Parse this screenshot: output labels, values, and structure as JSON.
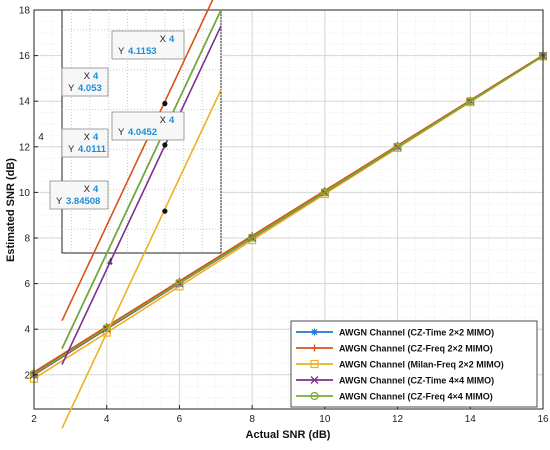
{
  "chart_data": {
    "type": "line",
    "xlabel": "Actual SNR (dB)",
    "ylabel": "Estimated SNR (dB)",
    "xlim": [
      2,
      16
    ],
    "ylim": [
      0.5,
      18
    ],
    "x_ticks": [
      "2",
      "4",
      "6",
      "8",
      "10",
      "12",
      "14",
      "16"
    ],
    "y_ticks": [
      "2",
      "4",
      "6",
      "8",
      "10",
      "12",
      "14",
      "16",
      "18"
    ],
    "grid": true,
    "legend_position": "bottom-right",
    "x": [
      2,
      4,
      6,
      8,
      10,
      12,
      14,
      16
    ],
    "series": [
      {
        "name": "AWGN Channel (CZ-Time 2×2 MIMO)",
        "color": "#1f77d0",
        "marker": "asterisk",
        "values": [
          2.05,
          4.05,
          6.04,
          8.04,
          10.03,
          12.02,
          14.01,
          16.0
        ]
      },
      {
        "name": "AWGN Channel (CZ-Freq 2×2 MIMO)",
        "color": "#d95319",
        "marker": "plus",
        "values": [
          2.12,
          4.12,
          6.11,
          8.1,
          10.08,
          12.06,
          14.04,
          16.02
        ]
      },
      {
        "name": "AWGN Channel (Milan-Freq 2×2 MIMO)",
        "color": "#edb120",
        "marker": "square",
        "values": [
          1.83,
          3.85,
          5.88,
          7.91,
          9.93,
          11.95,
          13.96,
          15.97
        ]
      },
      {
        "name": "AWGN Channel (CZ-Time 4×4 MIMO)",
        "color": "#7e2f8e",
        "marker": "x",
        "values": [
          2.0,
          4.01,
          6.01,
          8.0,
          10.0,
          12.0,
          14.0,
          15.99
        ]
      },
      {
        "name": "AWGN Channel (CZ-Freq 4×4 MIMO)",
        "color": "#77ac30",
        "marker": "circle",
        "values": [
          2.03,
          4.05,
          6.03,
          8.02,
          10.01,
          12.01,
          14.0,
          15.99
        ]
      }
    ],
    "inset": {
      "x_tick": "4",
      "y_tick": "4",
      "datatips": [
        {
          "x_label": "X",
          "x": "4",
          "y_label": "Y",
          "y": "4.1153"
        },
        {
          "x_label": "X",
          "x": "4",
          "y_label": "Y",
          "y": "4.053"
        },
        {
          "x_label": "X",
          "x": "4",
          "y_label": "Y",
          "y": "4.0452"
        },
        {
          "x_label": "X",
          "x": "4",
          "y_label": "Y",
          "y": "4.0111"
        },
        {
          "x_label": "X",
          "x": "4",
          "y_label": "Y",
          "y": "3.84508"
        }
      ]
    }
  }
}
